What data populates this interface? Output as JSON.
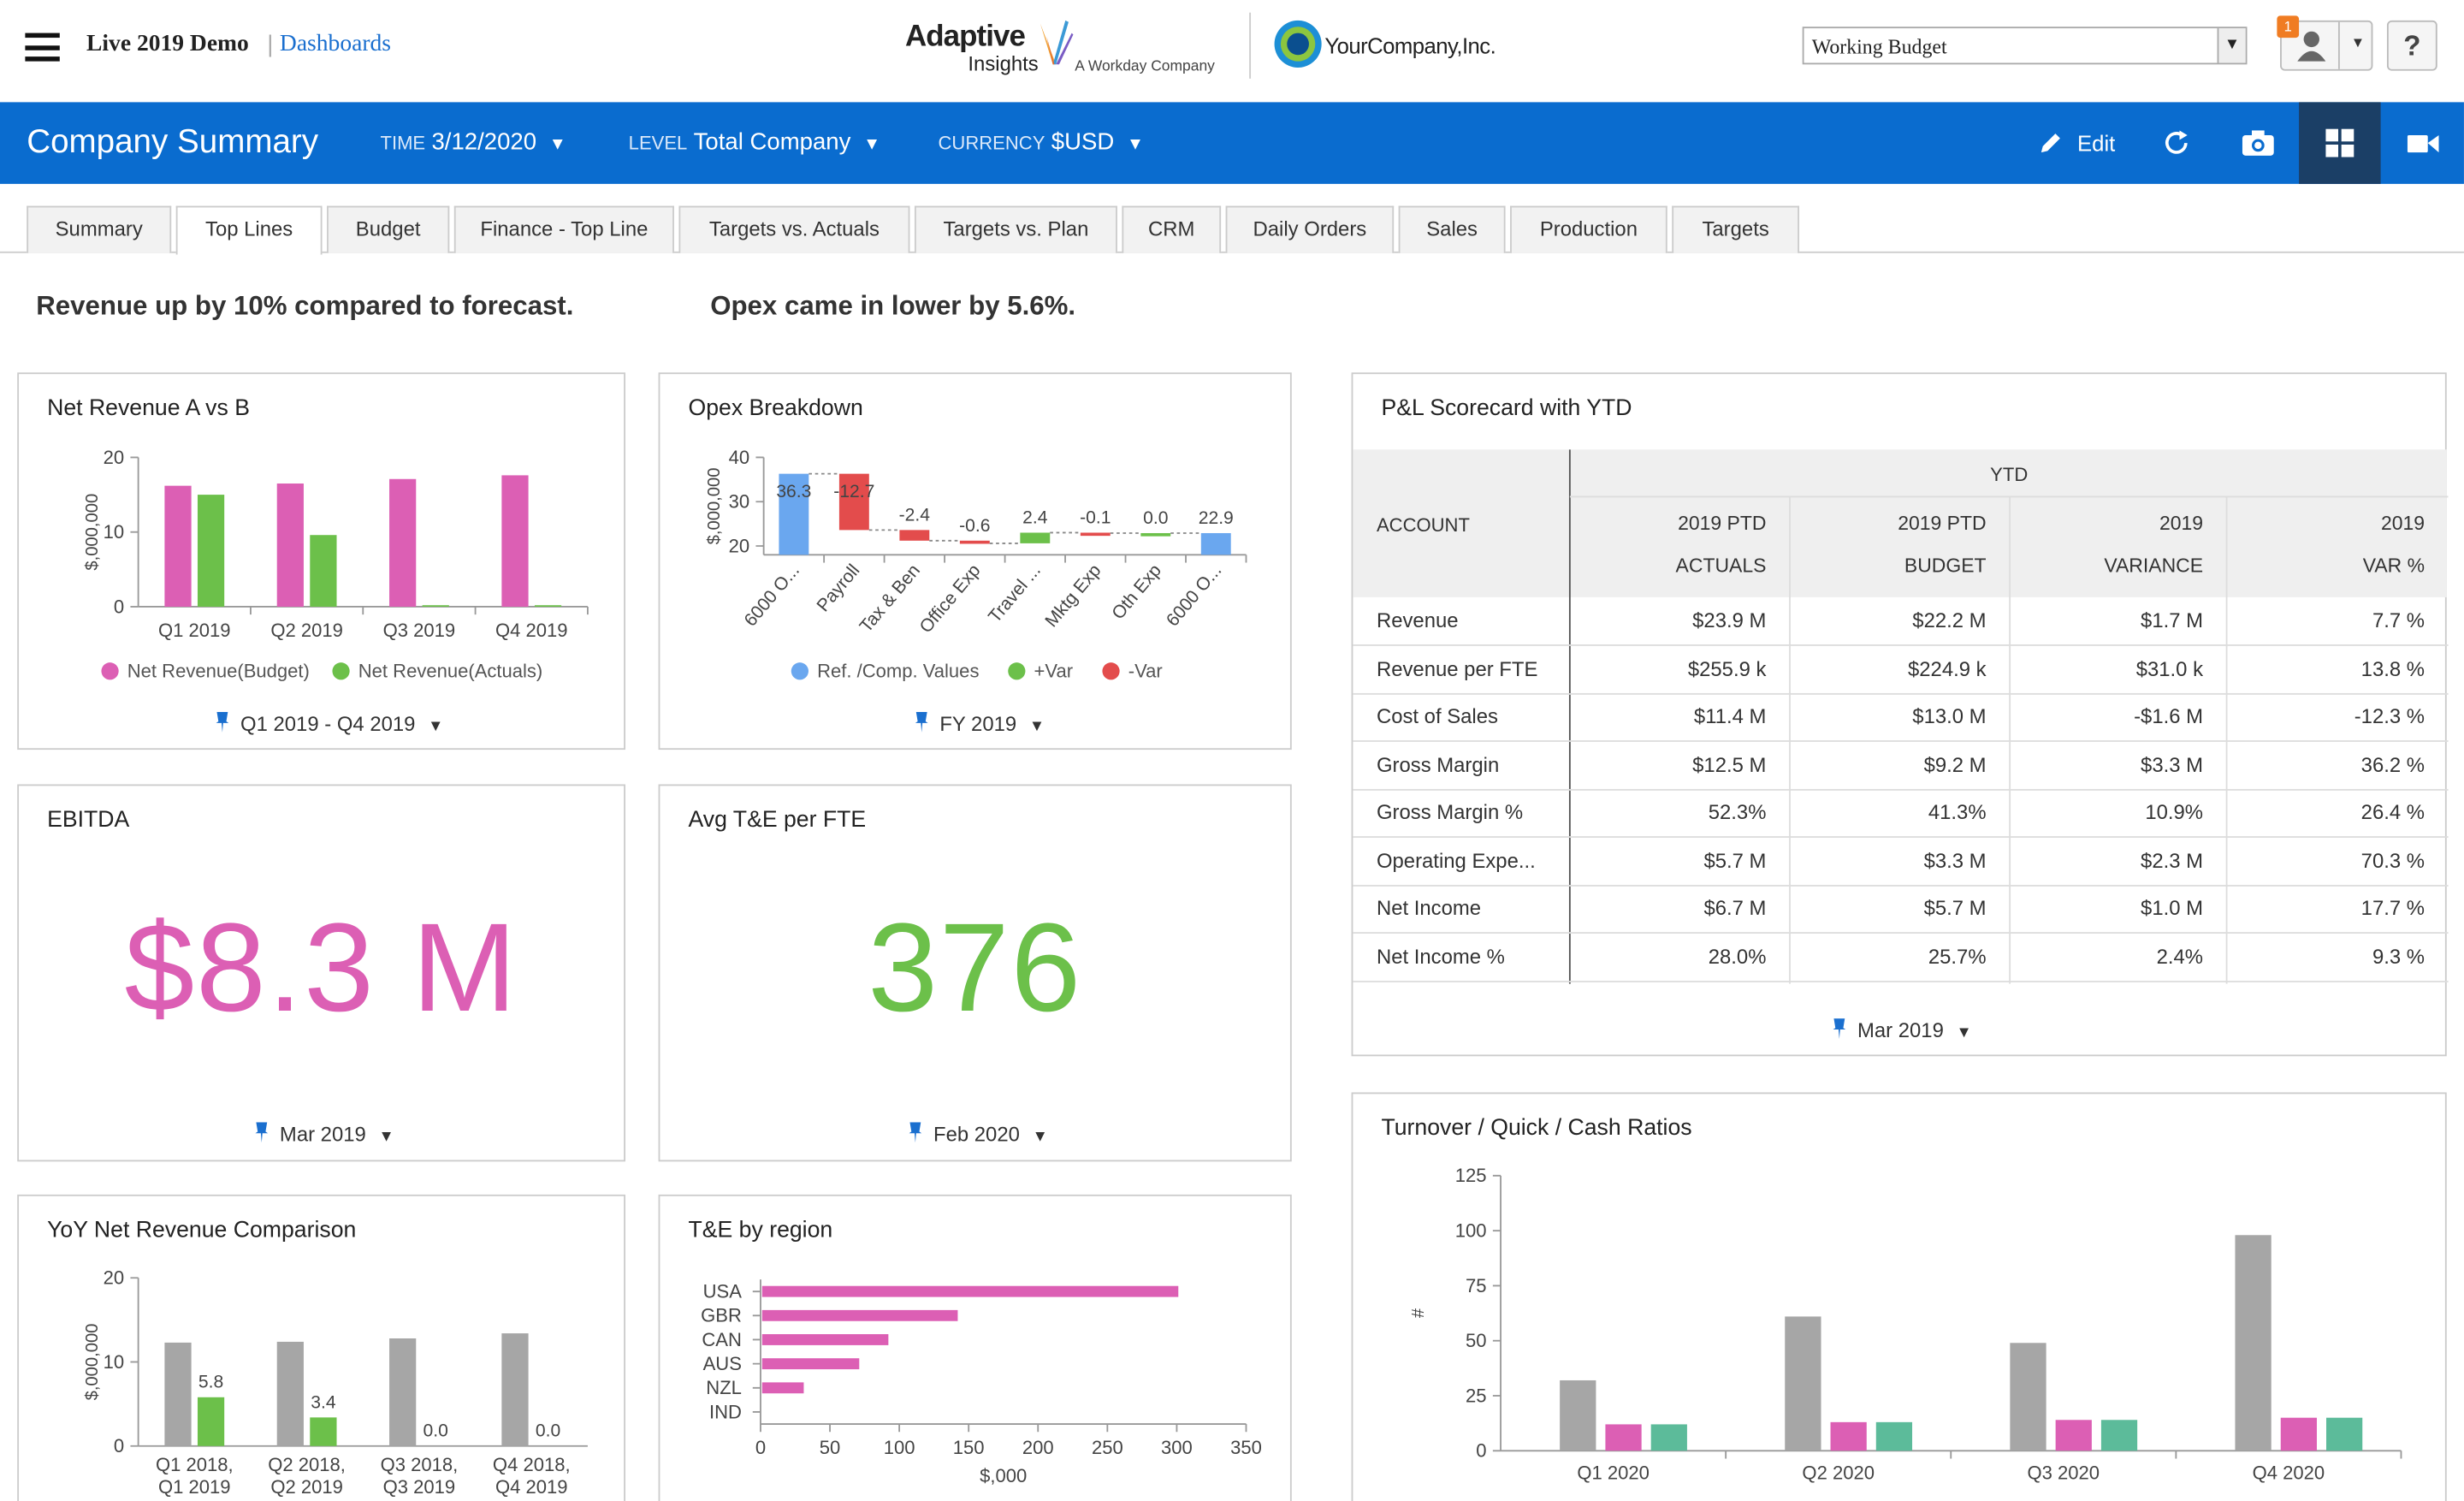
{
  "app": {
    "title": "Live 2019 Demo",
    "separator": "|",
    "breadcrumb": "Dashboards"
  },
  "logos": {
    "adaptive_line1": "Adaptive",
    "adaptive_line2": "Insights",
    "adaptive_tag": "A Workday Company",
    "company": "YourCompany,Inc."
  },
  "plan_select": {
    "value": "Working Budget"
  },
  "notifications": {
    "count": "1"
  },
  "help": {
    "label": "?"
  },
  "header": {
    "title": "Company Summary",
    "time_label": "TIME",
    "time_value": "3/12/2020",
    "level_label": "LEVEL",
    "level_value": "Total Company",
    "currency_label": "CURRENCY",
    "currency_value": "$USD",
    "edit_label": "Edit"
  },
  "tabs": [
    "Summary",
    "Top Lines",
    "Budget",
    "Finance - Top Line",
    "Targets vs. Actuals",
    "Targets vs. Plan",
    "CRM",
    "Daily Orders",
    "Sales",
    "Production",
    "Targets"
  ],
  "active_tab": "Top Lines",
  "headlines": {
    "h1": "Revenue up by 10% compared to forecast.",
    "h2": "Opex came in lower by 5.6%."
  },
  "net_revenue": {
    "title": "Net Revenue A vs B",
    "period": "Q1 2019 - Q4 2019",
    "legend": [
      "Net Revenue(Budget)",
      "Net Revenue(Actuals)"
    ]
  },
  "opex": {
    "title": "Opex Breakdown",
    "period": "FY 2019",
    "legend": [
      "Ref. /Comp. Values",
      "+Var",
      "-Var"
    ]
  },
  "scorecard": {
    "title": "P&L Scorecard with YTD",
    "group_header": "YTD",
    "account_header": "ACCOUNT",
    "col_headers": [
      [
        "2019 PTD",
        "ACTUALS"
      ],
      [
        "2019 PTD",
        "BUDGET"
      ],
      [
        "2019",
        "VARIANCE"
      ],
      [
        "2019",
        "VAR %"
      ]
    ],
    "rows": [
      {
        "account": "Revenue",
        "actuals": "$23.9 M",
        "budget": "$22.2 M",
        "variance": "$1.7 M",
        "var_pct": "7.7 %"
      },
      {
        "account": "Revenue per FTE",
        "actuals": "$255.9 k",
        "budget": "$224.9 k",
        "variance": "$31.0 k",
        "var_pct": "13.8 %"
      },
      {
        "account": "Cost of Sales",
        "actuals": "$11.4 M",
        "budget": "$13.0 M",
        "variance": "-$1.6 M",
        "var_pct": "-12.3 %"
      },
      {
        "account": "Gross Margin",
        "actuals": "$12.5 M",
        "budget": "$9.2 M",
        "variance": "$3.3 M",
        "var_pct": "36.2 %"
      },
      {
        "account": "Gross Margin %",
        "actuals": "52.3%",
        "budget": "41.3%",
        "variance": "10.9%",
        "var_pct": "26.4 %"
      },
      {
        "account": "Operating Expe...",
        "actuals": "$5.7 M",
        "budget": "$3.3 M",
        "variance": "$2.3 M",
        "var_pct": "70.3 %"
      },
      {
        "account": "Net Income",
        "actuals": "$6.7 M",
        "budget": "$5.7 M",
        "variance": "$1.0 M",
        "var_pct": "17.7 %"
      },
      {
        "account": "Net Income %",
        "actuals": "28.0%",
        "budget": "25.7%",
        "variance": "2.4%",
        "var_pct": "9.3 %"
      }
    ],
    "period": "Mar 2019"
  },
  "ebitda": {
    "title": "EBITDA",
    "value": "$8.3 M",
    "period": "Mar 2019",
    "color": "#dc5fb4"
  },
  "avg_te": {
    "title": "Avg T&E per FTE",
    "value": "376",
    "period": "Feb 2020",
    "color": "#6cc04a"
  },
  "yoy": {
    "title": "YoY Net Revenue Comparison"
  },
  "te_region": {
    "title": "T&E by region"
  },
  "ratios": {
    "title": "Turnover / Quick / Cash Ratios"
  },
  "colors": {
    "pink": "#dc5fb4",
    "green": "#6cc04a",
    "blue": "#0a6ccf",
    "grey": "#a6a6a6",
    "teal": "#5cbb9a",
    "red": "#e34c4c",
    "ref_blue": "#6aa7ef"
  },
  "chart_data": [
    {
      "id": "net_revenue",
      "type": "bar",
      "categories": [
        "Q1 2019",
        "Q2 2019",
        "Q3 2019",
        "Q4 2019"
      ],
      "series": [
        {
          "name": "Net Revenue(Budget)",
          "values": [
            16.2,
            16.5,
            17.1,
            17.6
          ]
        },
        {
          "name": "Net Revenue(Actuals)",
          "values": [
            15.0,
            9.6,
            0.2,
            0.2
          ]
        }
      ],
      "ylabel": "$,000,000",
      "ylim": [
        0,
        20
      ],
      "yticks": [
        0,
        10,
        20
      ]
    },
    {
      "id": "opex",
      "type": "waterfall",
      "categories": [
        "6000 O...",
        "Payroll",
        "Tax & Ben",
        "Office Exp",
        "Travel ...",
        "Mktg Exp",
        "Oth Exp",
        "6000 O..."
      ],
      "values": [
        36.3,
        -12.7,
        -2.4,
        -0.6,
        2.4,
        -0.1,
        0.0,
        22.9
      ],
      "labels": [
        "36.3",
        "-12.7",
        "-2.4",
        "-0.6",
        "2.4",
        "-0.1",
        "0.0",
        "22.9"
      ],
      "kinds": [
        "ref",
        "neg",
        "neg",
        "neg",
        "pos",
        "neg",
        "neg",
        "ref"
      ],
      "ylabel": "$,000,000",
      "ylim": [
        18,
        40
      ],
      "yticks": [
        20,
        30,
        40
      ]
    },
    {
      "id": "yoy",
      "type": "bar",
      "categories": [
        [
          "Q1 2018,",
          "Q1 2019"
        ],
        [
          "Q2 2018,",
          "Q2 2019"
        ],
        [
          "Q3 2018,",
          "Q3 2019"
        ],
        [
          "Q4 2018,",
          "Q4 2019"
        ]
      ],
      "series": [
        {
          "values": [
            12.3,
            12.4,
            12.8,
            13.4
          ]
        },
        {
          "values": [
            5.8,
            3.4,
            0.0,
            0.0
          ],
          "labels": [
            "5.8",
            "3.4",
            "0.0",
            "0.0"
          ]
        }
      ],
      "ylabel": "$,000,000",
      "ylim": [
        0,
        20
      ],
      "yticks": [
        0,
        10,
        20
      ]
    },
    {
      "id": "te_region",
      "type": "bar",
      "orientation": "horizontal",
      "categories": [
        "USA",
        "GBR",
        "CAN",
        "AUS",
        "NZL",
        "IND"
      ],
      "values": [
        300,
        141,
        91,
        70,
        30,
        0
      ],
      "xlabel": "$,000",
      "xlim": [
        0,
        350
      ],
      "xticks": [
        0,
        50,
        100,
        150,
        200,
        250,
        300,
        350
      ]
    },
    {
      "id": "ratios",
      "type": "bar",
      "categories": [
        "Q1 2020",
        "Q2 2020",
        "Q3 2020",
        "Q4 2020"
      ],
      "series": [
        {
          "values": [
            32,
            61,
            49,
            98
          ]
        },
        {
          "values": [
            12,
            13,
            14,
            15
          ]
        },
        {
          "values": [
            12,
            13,
            14,
            15
          ]
        }
      ],
      "ylabel": "#",
      "ylim": [
        0,
        125
      ],
      "yticks": [
        0,
        25,
        50,
        75,
        100,
        125
      ]
    }
  ]
}
